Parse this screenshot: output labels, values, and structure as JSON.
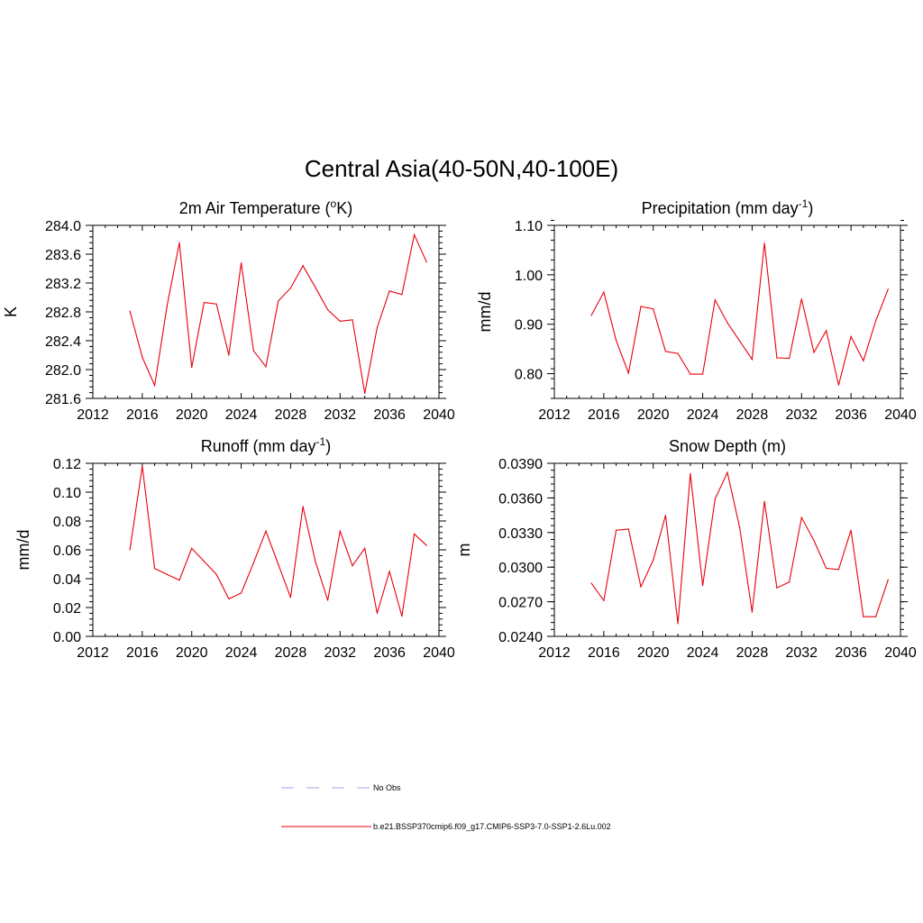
{
  "figure": {
    "title": "Central Asia(40-50N,40-100E)",
    "series_color": "#e8000b",
    "obs_color": "#b8b8e8"
  },
  "legend": {
    "obs_label": "No Obs",
    "model_label": "b.e21.BSSP370cmip6.f09_g17.CMIP6-SSP3-7.0-SSP1-2.6Lu.002"
  },
  "chart_data": [
    {
      "type": "line",
      "title": "2m Air Temperature (",
      "title_sup": "o",
      "title_suffix": "K)",
      "ylabel": "K",
      "xlim": [
        2012,
        2040
      ],
      "ylim": [
        281.6,
        284.0
      ],
      "xticks": [
        2012,
        2016,
        2020,
        2024,
        2028,
        2032,
        2036,
        2040
      ],
      "yticks": [
        "281.6",
        "282.0",
        "282.4",
        "282.8",
        "283.2",
        "283.6",
        "284.0"
      ],
      "x": [
        2015,
        2016,
        2017,
        2018,
        2019,
        2020,
        2021,
        2022,
        2023,
        2024,
        2025,
        2026,
        2027,
        2028,
        2029,
        2030,
        2031,
        2032,
        2033,
        2034,
        2035,
        2036,
        2037,
        2038,
        2039
      ],
      "series": [
        {
          "values": [
            282.81,
            282.17,
            281.78,
            282.88,
            283.76,
            282.03,
            282.93,
            282.91,
            282.2,
            283.48,
            282.26,
            282.04,
            282.95,
            283.13,
            283.44,
            283.14,
            282.83,
            282.67,
            282.69,
            281.67,
            282.58,
            283.09,
            283.04,
            283.87,
            283.49
          ]
        }
      ]
    },
    {
      "type": "line",
      "title": "Precipitation (mm day",
      "title_sup": "-1",
      "title_suffix": ")",
      "ylabel": "mm/d",
      "xlim": [
        2012,
        2040
      ],
      "ylim": [
        0.75,
        1.1
      ],
      "xticks": [
        2012,
        2016,
        2020,
        2024,
        2028,
        2032,
        2036,
        2040
      ],
      "yticks": [
        "0.80",
        "0.90",
        "1.00",
        "1.10"
      ],
      "x": [
        2015,
        2016,
        2017,
        2018,
        2019,
        2020,
        2021,
        2022,
        2023,
        2024,
        2025,
        2026,
        2027,
        2028,
        2029,
        2030,
        2031,
        2032,
        2033,
        2034,
        2035,
        2036,
        2037,
        2038,
        2039
      ],
      "series": [
        {
          "values": [
            0.918,
            0.965,
            0.867,
            0.801,
            0.936,
            0.931,
            0.845,
            0.841,
            0.799,
            0.799,
            0.949,
            0.903,
            0.866,
            0.829,
            1.064,
            0.832,
            0.831,
            0.951,
            0.843,
            0.887,
            0.777,
            0.875,
            0.826,
            0.907,
            0.971
          ]
        }
      ]
    },
    {
      "type": "line",
      "title": "Runoff (mm day",
      "title_sup": "-1",
      "title_suffix": ")",
      "ylabel": "mm/d",
      "xlim": [
        2012,
        2040
      ],
      "ylim": [
        0.0,
        0.12
      ],
      "xticks": [
        2012,
        2016,
        2020,
        2024,
        2028,
        2032,
        2036,
        2040
      ],
      "yticks": [
        "0.00",
        "0.02",
        "0.04",
        "0.06",
        "0.08",
        "0.10",
        "0.12"
      ],
      "x": [
        2015,
        2016,
        2017,
        2018,
        2019,
        2020,
        2021,
        2022,
        2023,
        2024,
        2025,
        2026,
        2027,
        2028,
        2029,
        2030,
        2031,
        2032,
        2033,
        2034,
        2035,
        2036,
        2037,
        2038,
        2039
      ],
      "series": [
        {
          "values": [
            0.06,
            0.118,
            0.047,
            0.043,
            0.039,
            0.061,
            0.052,
            0.043,
            0.026,
            0.03,
            0.051,
            0.073,
            0.05,
            0.027,
            0.09,
            0.052,
            0.025,
            0.073,
            0.049,
            0.061,
            0.016,
            0.045,
            0.014,
            0.071,
            0.063
          ]
        }
      ]
    },
    {
      "type": "line",
      "title": "Snow Depth (m)",
      "title_sup": "",
      "title_suffix": "",
      "ylabel": "m",
      "xlim": [
        2012,
        2040
      ],
      "ylim": [
        0.024,
        0.039
      ],
      "xticks": [
        2012,
        2016,
        2020,
        2024,
        2028,
        2032,
        2036,
        2040
      ],
      "yticks": [
        "0.0240",
        "0.0270",
        "0.0300",
        "0.0330",
        "0.0360",
        "0.0390"
      ],
      "x": [
        2015,
        2016,
        2017,
        2018,
        2019,
        2020,
        2021,
        2022,
        2023,
        2024,
        2025,
        2026,
        2027,
        2028,
        2029,
        2030,
        2031,
        2032,
        2033,
        2034,
        2035,
        2036,
        2037,
        2038,
        2039
      ],
      "series": [
        {
          "values": [
            0.0286,
            0.0271,
            0.0332,
            0.0333,
            0.0283,
            0.0306,
            0.0345,
            0.0251,
            0.0381,
            0.0284,
            0.0359,
            0.0382,
            0.0334,
            0.0261,
            0.0357,
            0.0282,
            0.0287,
            0.0343,
            0.0323,
            0.0299,
            0.0298,
            0.0332,
            0.0257,
            0.0257,
            0.0289
          ]
        }
      ]
    }
  ]
}
